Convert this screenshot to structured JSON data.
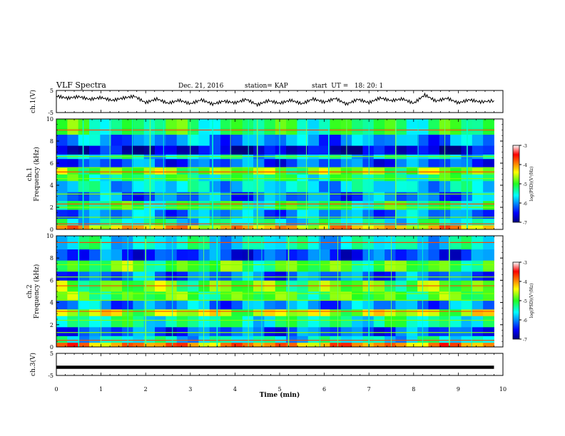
{
  "header": {
    "title": "VLF Spectra",
    "date": "Dec. 21, 2016",
    "station": "station= KAP",
    "start": "start  UT =   18: 20: 1"
  },
  "chart_data": [
    {
      "type": "line",
      "panel": "ch1-waveform",
      "ylabel": "ch.1(V)",
      "ylim": [
        -5,
        5
      ],
      "yticks": [
        "5",
        "-5"
      ],
      "x": [
        0,
        0.25,
        0.5,
        0.75,
        1,
        1.25,
        1.5,
        1.75,
        2,
        2.25,
        2.5,
        2.75,
        3,
        3.25,
        3.5,
        3.75,
        4,
        4.25,
        4.5,
        4.75,
        5,
        5.25,
        5.5,
        5.75,
        6,
        6.25,
        6.5,
        6.75,
        7,
        7.25,
        7.5,
        7.75,
        8,
        8.25,
        8.5,
        8.75,
        9,
        9.25,
        9.5,
        9.8
      ],
      "values": [
        2.5,
        1.5,
        2.2,
        1.0,
        1.8,
        0.5,
        1.6,
        2.4,
        -0.5,
        1.2,
        -0.8,
        0.6,
        -1.0,
        0.8,
        -1.2,
        0.2,
        -0.6,
        1.0,
        -1.5,
        0.4,
        -0.8,
        0.6,
        -1.0,
        1.2,
        -0.3,
        1.4,
        -1.2,
        1.0,
        -0.5,
        1.6,
        0.4,
        1.2,
        -0.8,
        3.0,
        0.2,
        1.5,
        -0.6,
        0.8,
        -0.2,
        0.4
      ]
    },
    {
      "type": "heatmap",
      "panel": "ch1-spectrogram",
      "ylabel": "ch.1\nFrequency (kHz)",
      "ylim": [
        0,
        10
      ],
      "yticks": [
        "0",
        "2",
        "4",
        "6",
        "8",
        "10"
      ],
      "colorbar": {
        "label": "log(PSD)(V²/Hz)",
        "range": [
          -7,
          -3
        ],
        "ticks": [
          "-3",
          "-4",
          "-5",
          "-6",
          "-7"
        ]
      },
      "bands": [
        {
          "f0": 0.0,
          "f1": 0.4,
          "level": -4.2
        },
        {
          "f0": 0.4,
          "f1": 1.0,
          "level": -5.5
        },
        {
          "f0": 1.0,
          "f1": 1.8,
          "level": -6.0
        },
        {
          "f0": 1.8,
          "f1": 2.6,
          "level": -5.2
        },
        {
          "f0": 2.6,
          "f1": 3.4,
          "level": -6.1
        },
        {
          "f0": 3.4,
          "f1": 4.4,
          "level": -5.7
        },
        {
          "f0": 4.4,
          "f1": 5.0,
          "level": -5.3
        },
        {
          "f0": 5.0,
          "f1": 5.6,
          "level": -4.8
        },
        {
          "f0": 5.6,
          "f1": 6.4,
          "level": -6.2
        },
        {
          "f0": 6.4,
          "f1": 6.8,
          "level": -5.6
        },
        {
          "f0": 6.8,
          "f1": 7.6,
          "level": -6.7
        },
        {
          "f0": 7.6,
          "f1": 8.6,
          "level": -6.0
        },
        {
          "f0": 8.6,
          "f1": 10.0,
          "level": -5.2
        }
      ],
      "lines_khz": [
        0.5,
        1.1,
        2.0,
        2.3,
        3.2,
        4.6,
        5.2,
        5.6,
        6.6,
        9.0
      ],
      "spikes_min": [
        0.6,
        1.2,
        1.7,
        2.1,
        2.4,
        3.0,
        3.5,
        3.9,
        4.3,
        4.5,
        5.0,
        5.6,
        6.1,
        6.5,
        7.0,
        7.6,
        8.1,
        8.7,
        9.2
      ]
    },
    {
      "type": "heatmap",
      "panel": "ch2-spectrogram",
      "ylabel": "ch.2\nFrequency (kHz)",
      "ylim": [
        0,
        10
      ],
      "yticks": [
        "0",
        "2",
        "4",
        "6",
        "8",
        "10"
      ],
      "colorbar": {
        "label": "log(PSD)(V²/Hz)",
        "range": [
          -7,
          -3
        ],
        "ticks": [
          "-3",
          "-4",
          "-5",
          "-6",
          "-7"
        ]
      },
      "bands": [
        {
          "f0": 0.0,
          "f1": 0.4,
          "level": -4.0
        },
        {
          "f0": 0.4,
          "f1": 1.0,
          "level": -5.6
        },
        {
          "f0": 1.0,
          "f1": 1.8,
          "level": -6.2
        },
        {
          "f0": 1.8,
          "f1": 2.8,
          "level": -5.4
        },
        {
          "f0": 2.8,
          "f1": 3.4,
          "level": -4.6
        },
        {
          "f0": 3.4,
          "f1": 4.2,
          "level": -6.0
        },
        {
          "f0": 4.2,
          "f1": 5.0,
          "level": -5.0
        },
        {
          "f0": 5.0,
          "f1": 6.0,
          "level": -4.9
        },
        {
          "f0": 6.0,
          "f1": 6.8,
          "level": -6.1
        },
        {
          "f0": 6.8,
          "f1": 7.8,
          "level": -5.0
        },
        {
          "f0": 7.8,
          "f1": 8.8,
          "level": -6.3
        },
        {
          "f0": 8.8,
          "f1": 10.0,
          "level": -5.6
        }
      ],
      "lines_khz": [
        0.6,
        1.3,
        2.4,
        3.2,
        4.2,
        4.8,
        5.5,
        6.3,
        7.4,
        9.4
      ],
      "spikes_min": [
        0.5,
        1.0,
        1.6,
        2.0,
        2.6,
        3.3,
        3.6,
        4.3,
        4.6,
        5.2,
        5.9,
        6.3,
        7.0,
        7.5,
        8.2,
        8.8,
        9.3
      ]
    },
    {
      "type": "line",
      "panel": "ch3-waveform",
      "ylabel": "ch.3(V)",
      "ylim": [
        -5,
        5
      ],
      "yticks": [
        "5",
        "-5"
      ],
      "x": [
        0,
        9.8
      ],
      "values": [
        -1.3,
        -1.3
      ]
    }
  ],
  "x_axis": {
    "label": "Time (min)",
    "range": [
      0,
      10
    ],
    "ticks": [
      "0",
      "1",
      "2",
      "3",
      "4",
      "5",
      "6",
      "7",
      "8",
      "9",
      "10"
    ]
  }
}
